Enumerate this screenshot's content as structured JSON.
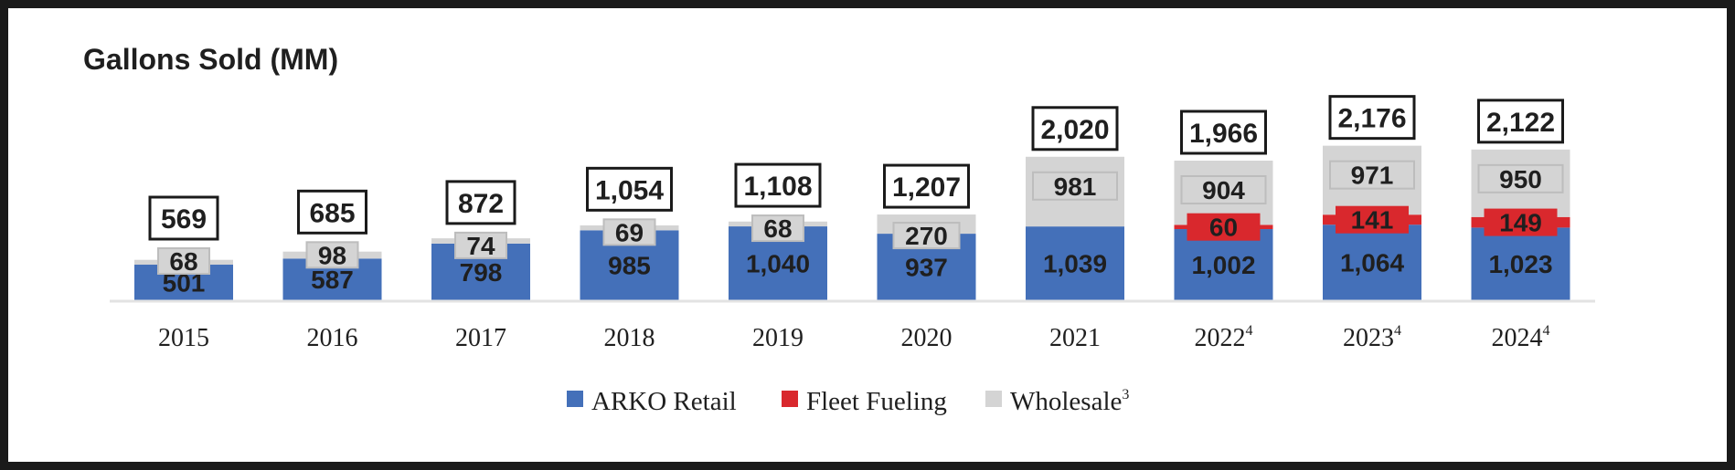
{
  "chart_data": {
    "type": "bar",
    "stacked": true,
    "title": "Gallons Sold (MM)",
    "xlabel": "",
    "ylabel": "",
    "ylim": [
      0,
      2300
    ],
    "grid": false,
    "legend_position": "bottom-center",
    "categories": [
      "2015",
      "2016",
      "2017",
      "2018",
      "2019",
      "2020",
      "2021",
      "2022",
      "2023",
      "2024"
    ],
    "category_footnotes": [
      "",
      "",
      "",
      "",
      "",
      "",
      "",
      "4",
      "4",
      "4"
    ],
    "series": [
      {
        "name": "ARKO Retail",
        "footnote": "",
        "color": "#4470b9",
        "values": [
          501,
          587,
          798,
          985,
          1040,
          937,
          1039,
          1002,
          1064,
          1023
        ],
        "labels": [
          "501",
          "587",
          "798",
          "985",
          "1,040",
          "937",
          "1,039",
          "1,002",
          "1,064",
          "1,023"
        ]
      },
      {
        "name": "Fleet Fueling",
        "footnote": "",
        "color": "#d9282d",
        "values": [
          0,
          0,
          0,
          0,
          0,
          0,
          0,
          60,
          141,
          149
        ],
        "labels": [
          "",
          "",
          "",
          "",
          "",
          "",
          "",
          "60",
          "141",
          "149"
        ]
      },
      {
        "name": "Wholesale",
        "footnote": "3",
        "color": "#d4d4d4",
        "values": [
          68,
          98,
          74,
          69,
          68,
          270,
          981,
          904,
          971,
          950
        ],
        "labels": [
          "68",
          "98",
          "74",
          "69",
          "68",
          "270",
          "981",
          "904",
          "971",
          "950"
        ]
      }
    ],
    "totals": [
      "569",
      "685",
      "872",
      "1,054",
      "1,108",
      "1,207",
      "2,020",
      "1,966",
      "2,176",
      "2,122"
    ]
  }
}
